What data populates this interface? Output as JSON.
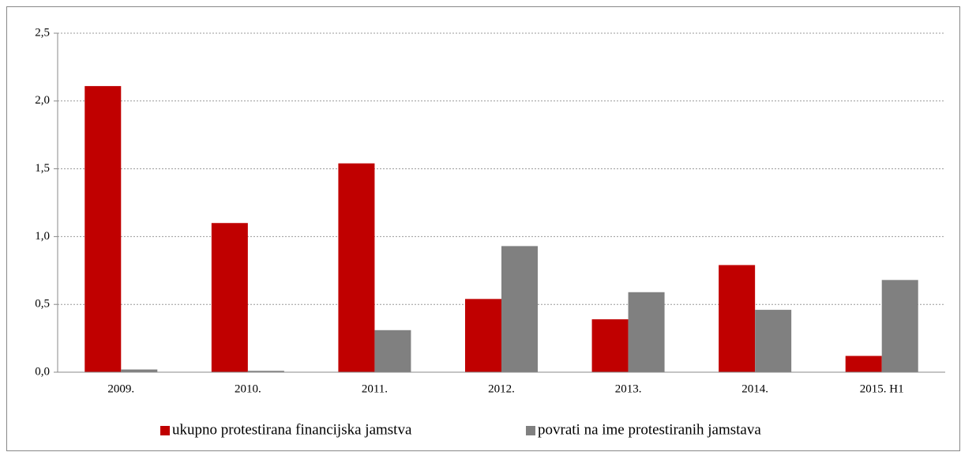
{
  "chart_data": {
    "type": "bar",
    "categories": [
      "2009.",
      "2010.",
      "2011.",
      "2012.",
      "2013.",
      "2014.",
      "2015. H1"
    ],
    "series": [
      {
        "name": "ukupno protestirana financijska jamstva",
        "color": "#c00000",
        "values": [
          2.11,
          1.1,
          1.54,
          0.54,
          0.39,
          0.79,
          0.12
        ]
      },
      {
        "name": "povrati na ime protestiranih jamstava",
        "color": "#808080",
        "values": [
          0.02,
          0.01,
          0.31,
          0.93,
          0.59,
          0.46,
          0.68
        ]
      }
    ],
    "ylim": [
      0,
      2.5
    ],
    "yticks": [
      {
        "value": 0,
        "label": "0,0"
      },
      {
        "value": 0.5,
        "label": "0,5"
      },
      {
        "value": 1,
        "label": "1,0"
      },
      {
        "value": 1.5,
        "label": "1,5"
      },
      {
        "value": 2,
        "label": "2,0"
      },
      {
        "value": 2.5,
        "label": "2,5"
      }
    ],
    "grid": true
  }
}
